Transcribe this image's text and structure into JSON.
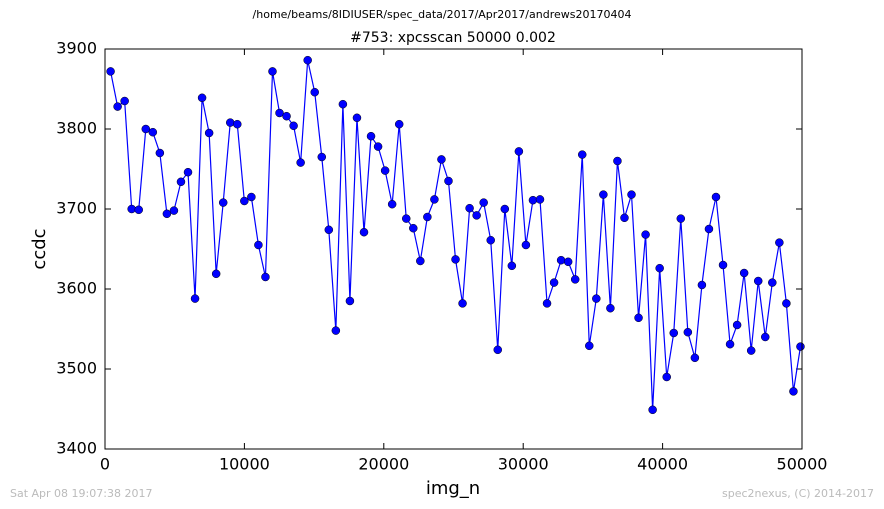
{
  "chart_data": {
    "type": "line",
    "suptitle": "/home/beams/8IDIUSER/spec_data/2017/Apr2017/andrews20170404",
    "title": "#753: xpcsscan 50000 0.002",
    "xlabel": "img_n",
    "ylabel": "ccdc",
    "footer_left": "Sat Apr 08 19:07:38 2017",
    "footer_right": "spec2nexus, (C) 2014-2017",
    "xlim": [
      0,
      50000
    ],
    "xticks": [
      0,
      10000,
      20000,
      30000,
      40000,
      50000
    ],
    "ylim": [
      3400,
      3900
    ],
    "yticks": [
      3400,
      3500,
      3600,
      3700,
      3800,
      3900
    ],
    "grid": false,
    "series": [
      {
        "name": "ccdc",
        "color": "#0000ff",
        "x": [
          400,
          905,
          1410,
          1915,
          2420,
          2925,
          3430,
          3935,
          4440,
          4945,
          5450,
          5955,
          6460,
          6965,
          7470,
          7975,
          8480,
          8985,
          9490,
          9995,
          10500,
          11005,
          11510,
          12015,
          12520,
          13025,
          13530,
          14035,
          14540,
          15045,
          15550,
          16055,
          16560,
          17065,
          17570,
          18075,
          18580,
          19085,
          19590,
          20095,
          20600,
          21105,
          21610,
          22115,
          22620,
          23125,
          23630,
          24135,
          24640,
          25145,
          25650,
          26155,
          26660,
          27165,
          27670,
          28175,
          28680,
          29185,
          29690,
          30195,
          30700,
          31205,
          31710,
          32215,
          32720,
          33225,
          33730,
          34235,
          34740,
          35245,
          35750,
          36255,
          36760,
          37265,
          37770,
          38275,
          38780,
          39285,
          39790,
          40295,
          40800,
          41305,
          41810,
          42315,
          42820,
          43325,
          43830,
          44335,
          44840,
          45345,
          45850,
          46355,
          46860,
          47365,
          47870,
          48375,
          48880,
          49385,
          49890
        ],
        "values": [
          3872,
          3828,
          3835,
          3700,
          3699,
          3800,
          3796,
          3770,
          3694,
          3698,
          3734,
          3746,
          3588,
          3839,
          3795,
          3619,
          3708,
          3808,
          3806,
          3710,
          3715,
          3655,
          3615,
          3872,
          3820,
          3816,
          3804,
          3758,
          3886,
          3846,
          3765,
          3674,
          3548,
          3831,
          3585,
          3814,
          3671,
          3791,
          3778,
          3748,
          3706,
          3806,
          3688,
          3676,
          3635,
          3690,
          3712,
          3762,
          3735,
          3637,
          3582,
          3701,
          3692,
          3708,
          3661,
          3524,
          3700,
          3629,
          3772,
          3655,
          3711,
          3712,
          3582,
          3608,
          3636,
          3634,
          3612,
          3768,
          3529,
          3588,
          3718,
          3576,
          3760,
          3689,
          3718,
          3564,
          3668,
          3449,
          3626,
          3490,
          3545,
          3688,
          3546,
          3514,
          3605,
          3675,
          3715,
          3630,
          3531,
          3555,
          3620,
          3523,
          3610,
          3540,
          3608,
          3658,
          3582,
          3472,
          3528
        ]
      }
    ]
  }
}
